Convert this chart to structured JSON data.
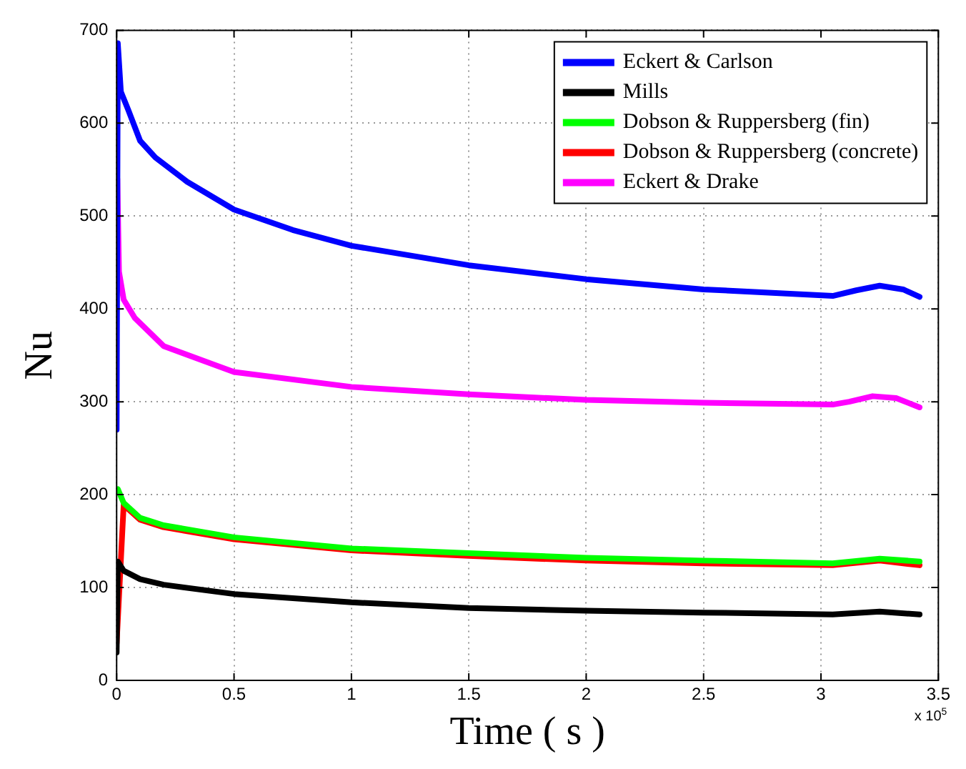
{
  "chart_data": {
    "type": "line",
    "xlabel": "Time ( s )",
    "ylabel": "Nu",
    "annotations": [
      "x 10$^{5}$"
    ],
    "xlim": [
      0,
      3.5
    ],
    "xticks": [
      0,
      0.5,
      1,
      1.5,
      2,
      2.5,
      3,
      3.5
    ],
    "ylim": [
      0,
      700
    ],
    "yticks": [
      0,
      100,
      200,
      300,
      400,
      500,
      600,
      700
    ],
    "grid": true,
    "legend": "top right",
    "marker": "none",
    "line_style": "solid",
    "series": [
      {
        "name": "Eckert & Carlson",
        "color": "#0000ff",
        "x": [
          0,
          0.005,
          0.018,
          0.05,
          0.1,
          0.165,
          0.3,
          0.5,
          0.75,
          1,
          1.5,
          2,
          2.5,
          3.05,
          3.15,
          3.25,
          3.35,
          3.42
        ],
        "values": [
          270,
          686,
          634,
          614,
          581,
          563,
          537,
          507,
          485,
          468,
          447,
          432,
          421,
          414,
          420,
          425,
          421,
          413
        ]
      },
      {
        "name": "Mills",
        "color": "#000000",
        "x": [
          0,
          0.005,
          0.03,
          0.1,
          0.2,
          0.5,
          1,
          1.5,
          2,
          2.5,
          3.05,
          3.25,
          3.42
        ],
        "values": [
          30,
          128,
          118,
          109,
          103,
          93,
          84,
          78,
          75,
          73,
          71,
          74,
          71
        ]
      },
      {
        "name": "Dobson & Ruppersberg (fin)",
        "color": "#00ff00",
        "x": [
          0.005,
          0.03,
          0.1,
          0.2,
          0.5,
          1,
          1.5,
          2,
          2.5,
          3.05,
          3.25,
          3.42
        ],
        "values": [
          206,
          191,
          175,
          167,
          154,
          142,
          137,
          132,
          129,
          126,
          131,
          128
        ]
      },
      {
        "name": "Dobson & Ruppersberg (concrete)",
        "color": "#ff0000",
        "x": [
          0,
          0.03,
          0.1,
          0.2,
          0.5,
          1,
          1.5,
          2,
          2.5,
          3.05,
          3.25,
          3.42
        ],
        "values": [
          40,
          189,
          173,
          165,
          152,
          140,
          134,
          129,
          126,
          124,
          129,
          124
        ]
      },
      {
        "name": "Eckert & Drake",
        "color": "#ff00ff",
        "x": [
          0.003,
          0.01,
          0.03,
          0.078,
          0.2,
          0.5,
          1,
          1.5,
          2,
          2.5,
          3.05,
          3.12,
          3.22,
          3.32,
          3.42
        ],
        "values": [
          540,
          440,
          410,
          390,
          360,
          332,
          316,
          308,
          302,
          299,
          297,
          300,
          306,
          304,
          294
        ]
      }
    ]
  }
}
